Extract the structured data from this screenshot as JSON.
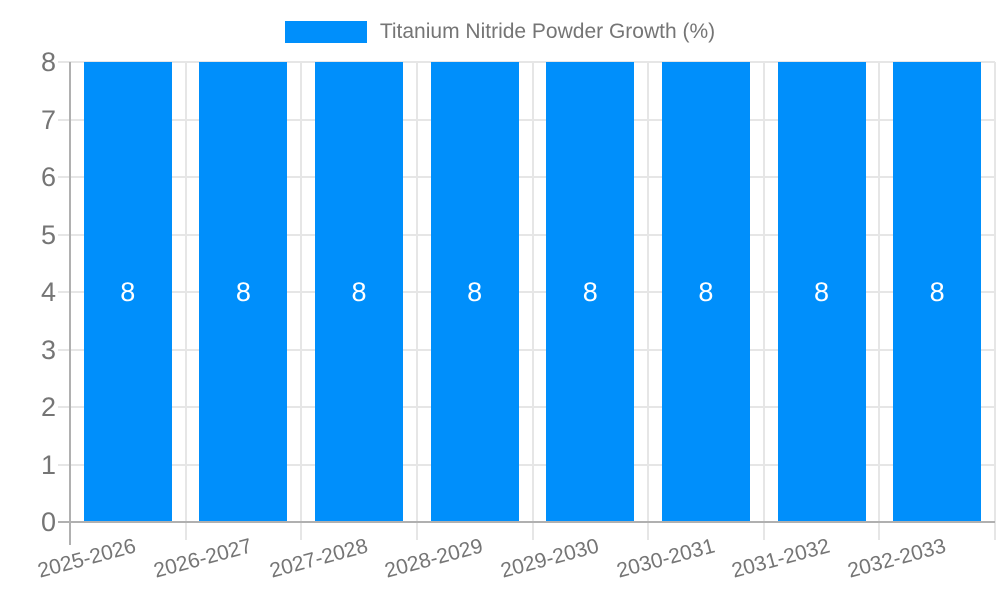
{
  "legend": {
    "label": "Titanium Nitride Powder Growth (%)"
  },
  "chart_data": {
    "type": "bar",
    "title": "Titanium Nitride Powder Growth (%)",
    "categories": [
      "2025-2026",
      "2026-2027",
      "2027-2028",
      "2028-2029",
      "2029-2030",
      "2030-2031",
      "2031-2032",
      "2032-2033"
    ],
    "series": [
      {
        "name": "Titanium Nitride Powder Growth (%)",
        "values": [
          8,
          8,
          8,
          8,
          8,
          8,
          8,
          8
        ],
        "data_labels": [
          "8",
          "8",
          "8",
          "8",
          "8",
          "8",
          "8",
          "8"
        ]
      }
    ],
    "xlabel": "",
    "ylabel": "",
    "ylim": [
      0,
      8
    ],
    "yticks": [
      0,
      1,
      2,
      3,
      4,
      5,
      6,
      7,
      8
    ],
    "grid": true,
    "legend_position": "top-center",
    "colors": {
      "bar": "#008FFB",
      "grid_line": "#e6e6e6",
      "axis_line": "#b0b0b0",
      "tick_label": "#757575",
      "bar_label": "#ffffff",
      "background": "#ffffff"
    }
  }
}
